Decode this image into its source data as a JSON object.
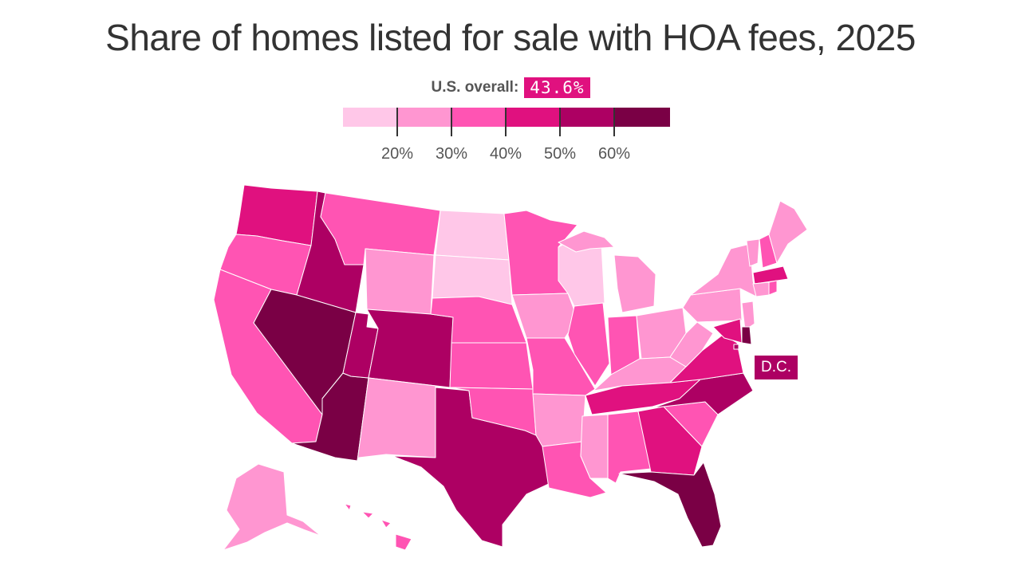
{
  "title": "Share of homes listed for sale with HOA fees, 2025",
  "overall": {
    "label": "U.S. overall:",
    "value": "43.6%"
  },
  "legend": {
    "bins": [
      {
        "color": "#ffc7e8"
      },
      {
        "color": "#ff96d1"
      },
      {
        "color": "#ff54b3"
      },
      {
        "color": "#e0117f"
      },
      {
        "color": "#ad0063"
      },
      {
        "color": "#7a0045"
      }
    ],
    "ticks": [
      "20%",
      "30%",
      "40%",
      "50%",
      "60%"
    ]
  },
  "dc_label": "D.C.",
  "states": [
    {
      "name": "WA",
      "bin": 3
    },
    {
      "name": "OR",
      "bin": 2
    },
    {
      "name": "CA",
      "bin": 2
    },
    {
      "name": "ID",
      "bin": 4
    },
    {
      "name": "NV",
      "bin": 5
    },
    {
      "name": "AZ",
      "bin": 5
    },
    {
      "name": "UT",
      "bin": 4
    },
    {
      "name": "MT",
      "bin": 2
    },
    {
      "name": "WY",
      "bin": 1
    },
    {
      "name": "CO",
      "bin": 4
    },
    {
      "name": "NM",
      "bin": 1
    },
    {
      "name": "TX",
      "bin": 4
    },
    {
      "name": "ND",
      "bin": 0
    },
    {
      "name": "SD",
      "bin": 0
    },
    {
      "name": "NE",
      "bin": 2
    },
    {
      "name": "KS",
      "bin": 2
    },
    {
      "name": "OK",
      "bin": 2
    },
    {
      "name": "MN",
      "bin": 2
    },
    {
      "name": "IA",
      "bin": 1
    },
    {
      "name": "MO",
      "bin": 2
    },
    {
      "name": "AR",
      "bin": 1
    },
    {
      "name": "LA",
      "bin": 2
    },
    {
      "name": "WI",
      "bin": 0
    },
    {
      "name": "IL",
      "bin": 2
    },
    {
      "name": "MI",
      "bin": 1
    },
    {
      "name": "IN",
      "bin": 2
    },
    {
      "name": "OH",
      "bin": 1
    },
    {
      "name": "KY",
      "bin": 1
    },
    {
      "name": "TN",
      "bin": 3
    },
    {
      "name": "MS",
      "bin": 1
    },
    {
      "name": "AL",
      "bin": 2
    },
    {
      "name": "GA",
      "bin": 3
    },
    {
      "name": "FL",
      "bin": 5
    },
    {
      "name": "SC",
      "bin": 2
    },
    {
      "name": "NC",
      "bin": 4
    },
    {
      "name": "VA",
      "bin": 3
    },
    {
      "name": "WV",
      "bin": 1
    },
    {
      "name": "PA",
      "bin": 1
    },
    {
      "name": "NY",
      "bin": 1
    },
    {
      "name": "VT",
      "bin": 1
    },
    {
      "name": "NH",
      "bin": 2
    },
    {
      "name": "ME",
      "bin": 1
    },
    {
      "name": "MA",
      "bin": 3
    },
    {
      "name": "CT",
      "bin": 1
    },
    {
      "name": "RI",
      "bin": 2
    },
    {
      "name": "NJ",
      "bin": 1
    },
    {
      "name": "DE",
      "bin": 5
    },
    {
      "name": "MD",
      "bin": 3
    },
    {
      "name": "DC",
      "bin": 4
    },
    {
      "name": "AK",
      "bin": 1
    },
    {
      "name": "HI",
      "bin": 2
    }
  ]
}
